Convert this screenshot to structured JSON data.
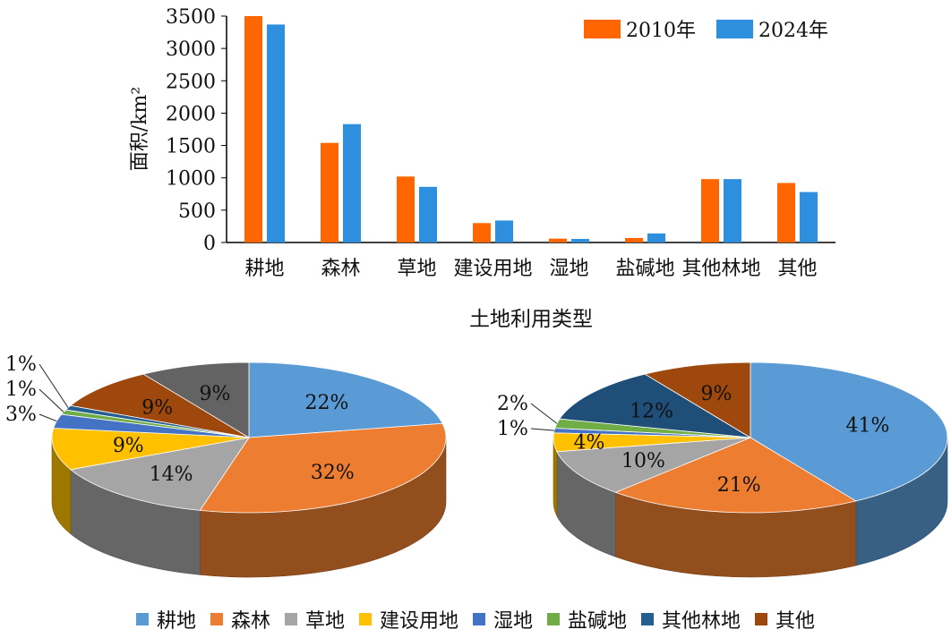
{
  "colors": {
    "series_2010": "#ff6600",
    "series_2024": "#2e8fde",
    "pie": [
      "#5b9bd5",
      "#ed7d31",
      "#a5a5a5",
      "#ffc000",
      "#4472c4",
      "#70ad47",
      "#255e91",
      "#9e480e"
    ],
    "pie2_other_forest": "#1f4e79",
    "pie1_other": "#636363"
  },
  "chart_data": [
    {
      "type": "bar",
      "title": "",
      "xlabel": "土地利用类型",
      "ylabel": "面积/km²",
      "ylim": [
        0,
        3500
      ],
      "yticks": [
        0,
        500,
        1000,
        1500,
        2000,
        2500,
        3000,
        3500
      ],
      "ytick_labels": [
        "0",
        "500",
        "1000",
        "1500",
        "2000",
        "2500",
        "3000",
        "3500"
      ],
      "categories": [
        "耕地",
        "森林",
        "草地",
        "建设用地",
        "湿地",
        "盐碱地",
        "其他林地",
        "其他"
      ],
      "series": [
        {
          "name": "2010年",
          "values": [
            3500,
            1540,
            1020,
            300,
            60,
            70,
            980,
            920
          ]
        },
        {
          "name": "2024年",
          "values": [
            3370,
            1830,
            860,
            340,
            55,
            140,
            980,
            780
          ]
        }
      ],
      "legend_position": "top-right",
      "grid": false
    },
    {
      "type": "pie",
      "categories": [
        "耕地",
        "森林",
        "草地",
        "建设用地",
        "湿地",
        "盐碱地",
        "其他林地",
        "其他"
      ],
      "values": [
        22,
        32,
        14,
        9,
        3,
        1,
        1,
        9
      ],
      "extra_slice": {
        "label": "9%",
        "value": 9
      },
      "labels": [
        "22%",
        "32%",
        "14%",
        "9%",
        "3%",
        "1%",
        "1%",
        "9%"
      ]
    },
    {
      "type": "pie",
      "categories": [
        "耕地",
        "森林",
        "草地",
        "建设用地",
        "湿地",
        "盐碱地",
        "其他林地",
        "其他"
      ],
      "values": [
        41,
        21,
        10,
        4,
        1,
        2,
        12,
        9
      ],
      "labels": [
        "41%",
        "21%",
        "10%",
        "4%",
        "1%",
        "2%",
        "12%",
        "9%"
      ]
    }
  ],
  "legend": {
    "items": [
      "耕地",
      "森林",
      "草地",
      "建设用地",
      "湿地",
      "盐碱地",
      "其他林地",
      "其他"
    ]
  }
}
